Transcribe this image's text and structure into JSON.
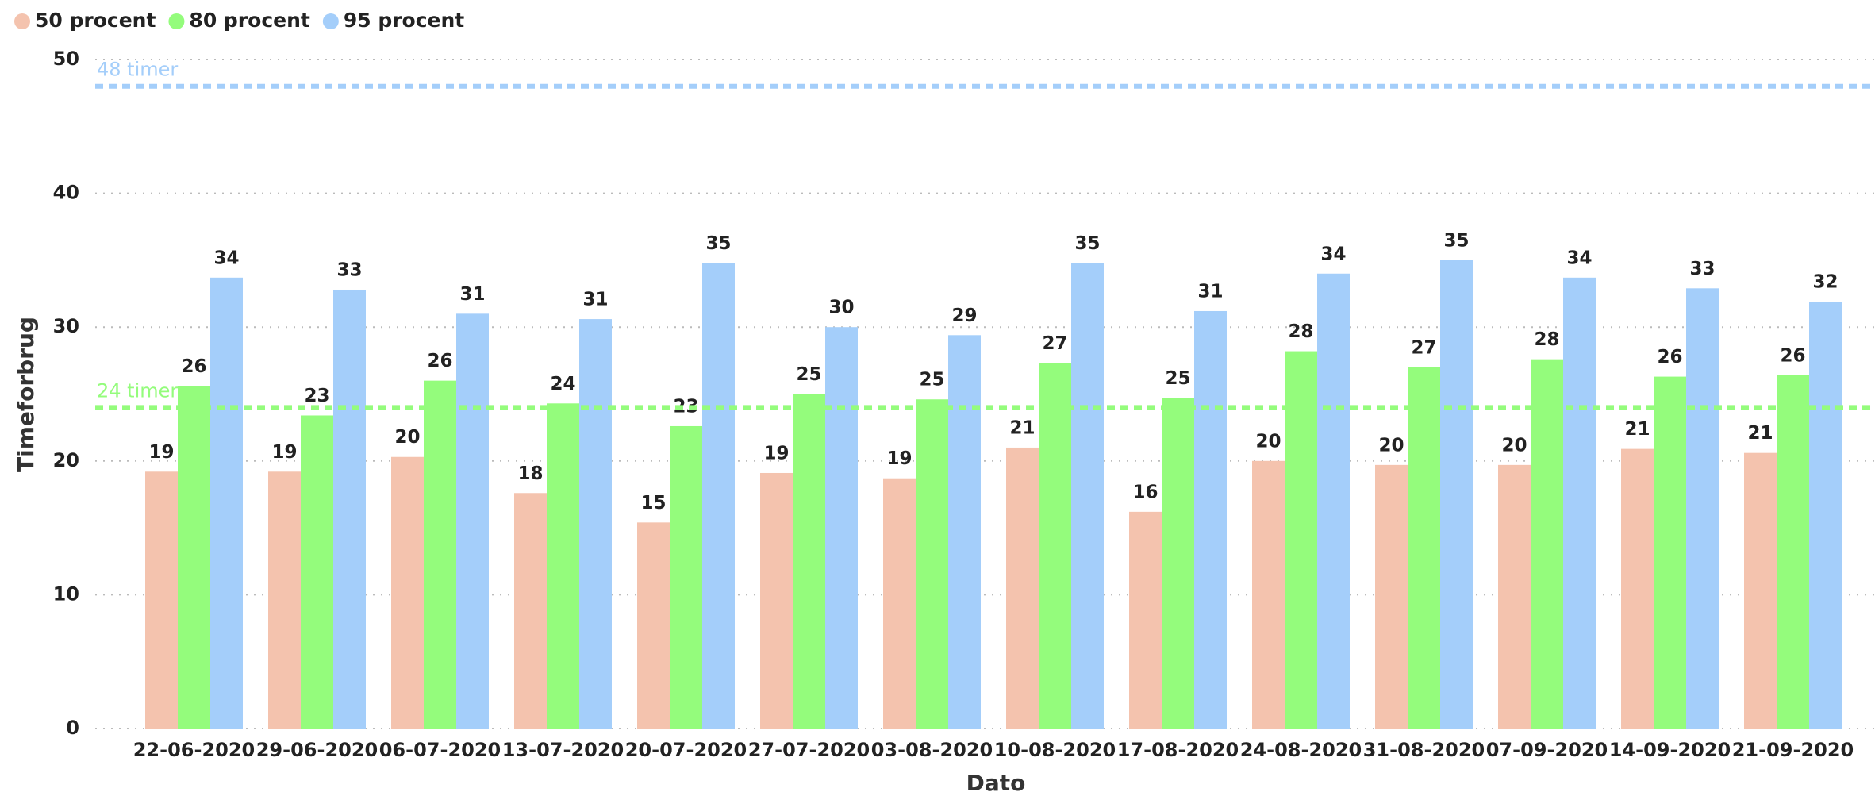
{
  "chart_data": {
    "type": "bar",
    "categories": [
      "22-06-2020",
      "29-06-2020",
      "06-07-2020",
      "13-07-2020",
      "20-07-2020",
      "27-07-2020",
      "03-08-2020",
      "10-08-2020",
      "17-08-2020",
      "24-08-2020",
      "31-08-2020",
      "07-09-2020",
      "14-09-2020",
      "21-09-2020"
    ],
    "series": [
      {
        "name": "50 procent",
        "color": "#f4c3ae",
        "values": [
          19.2,
          19.2,
          20.3,
          17.6,
          15.4,
          19.1,
          18.7,
          21.0,
          16.2,
          20.0,
          19.7,
          19.7,
          20.9,
          20.6
        ],
        "value_labels": [
          "19",
          "19",
          "20",
          "18",
          "15",
          "19",
          "19",
          "21",
          "16",
          "20",
          "20",
          "20",
          "21",
          "21"
        ]
      },
      {
        "name": "80 procent",
        "color": "#94fc7c",
        "values": [
          25.6,
          23.4,
          26.0,
          24.3,
          22.6,
          25.0,
          24.6,
          27.3,
          24.7,
          28.2,
          27.0,
          27.6,
          26.3,
          26.4
        ],
        "value_labels": [
          "26",
          "23",
          "26",
          "24",
          "23",
          "25",
          "25",
          "27",
          "25",
          "28",
          "27",
          "28",
          "26",
          "26"
        ]
      },
      {
        "name": "95 procent",
        "color": "#a4cefa",
        "values": [
          33.7,
          32.8,
          31.0,
          30.6,
          34.8,
          30.0,
          29.4,
          34.8,
          31.2,
          34.0,
          35.0,
          33.7,
          32.9,
          31.9
        ],
        "value_labels": [
          "34",
          "33",
          "31",
          "31",
          "35",
          "30",
          "29",
          "35",
          "31",
          "34",
          "35",
          "34",
          "33",
          "32"
        ]
      }
    ],
    "reference_lines": [
      {
        "value": 48,
        "label": "48 timer",
        "color": "#a4cefa"
      },
      {
        "value": 24,
        "label": "24 timer",
        "color": "#94fc7c"
      }
    ],
    "x_label": "Dato",
    "y_label": "Timeforbrug",
    "ylim": [
      0,
      50
    ],
    "yticks": [
      0,
      10,
      20,
      30,
      40,
      50
    ],
    "grid": true,
    "legend": "top-left"
  }
}
